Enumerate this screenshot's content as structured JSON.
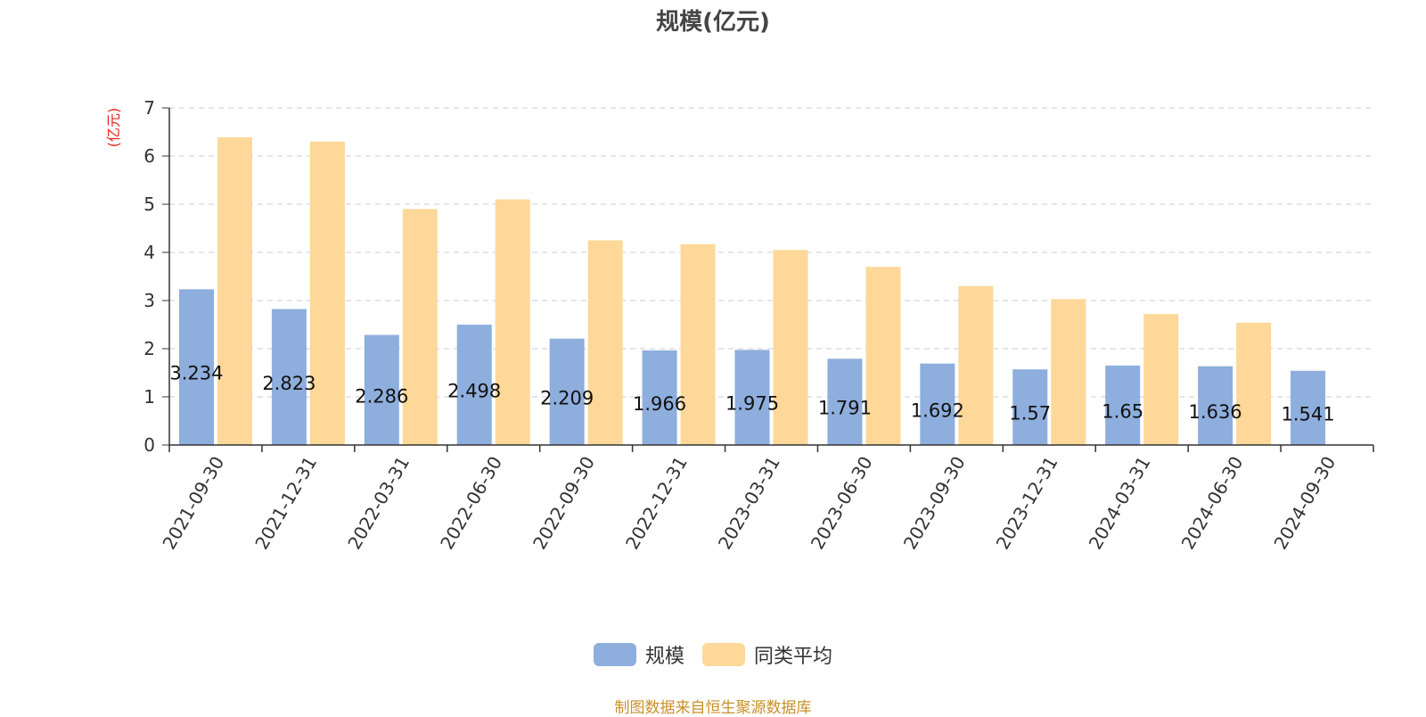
{
  "chart_data": {
    "type": "bar",
    "title": "规模(亿元)",
    "ylabel": "(亿元)",
    "xlabel": "",
    "ylim": [
      0,
      7
    ],
    "yticks": [
      0,
      1,
      2,
      3,
      4,
      5,
      6,
      7
    ],
    "grid": true,
    "legend_position": "bottom-center",
    "categories": [
      "2021-09-30",
      "2021-12-31",
      "2022-03-31",
      "2022-06-30",
      "2022-09-30",
      "2022-12-31",
      "2023-03-31",
      "2023-06-30",
      "2023-09-30",
      "2023-12-31",
      "2024-03-31",
      "2024-06-30",
      "2024-09-30"
    ],
    "series": [
      {
        "name": "规模",
        "color": "#8eaedd",
        "values": [
          3.234,
          2.823,
          2.286,
          2.498,
          2.209,
          1.966,
          1.975,
          1.791,
          1.692,
          1.57,
          1.65,
          1.636,
          1.541
        ],
        "labels": [
          "3.234",
          "2.823",
          "2.286",
          "2.498",
          "2.209",
          "1.966",
          "1.975",
          "1.791",
          "1.692",
          "1.57",
          "1.65",
          "1.636",
          "1.541"
        ]
      },
      {
        "name": "同类平均",
        "color": "#fdd899",
        "values": [
          6.39,
          6.3,
          4.9,
          5.1,
          4.25,
          4.17,
          4.05,
          3.7,
          3.3,
          3.03,
          2.72,
          2.54,
          null
        ]
      }
    ]
  },
  "source_note": "制图数据来自恒生聚源数据库"
}
